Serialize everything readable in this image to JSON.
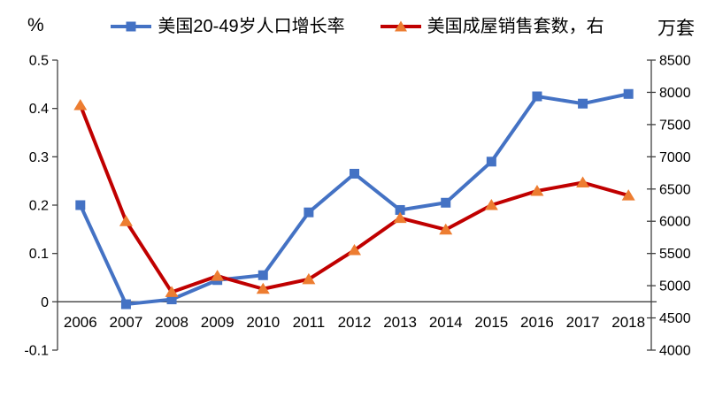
{
  "chart_data": {
    "type": "line",
    "title": "",
    "categories": [
      "2006",
      "2007",
      "2008",
      "2009",
      "2010",
      "2011",
      "2012",
      "2013",
      "2014",
      "2015",
      "2016",
      "2017",
      "2018"
    ],
    "series": [
      {
        "name": "美国20-49岁人口增长率",
        "axis": "left",
        "color": "#4472C4",
        "marker": "square",
        "marker_color": "#4472C4",
        "values": [
          0.2,
          -0.005,
          0.005,
          0.045,
          0.055,
          0.185,
          0.265,
          0.19,
          0.205,
          0.29,
          0.425,
          0.41,
          0.43
        ]
      },
      {
        "name": "美国成屋销售套数，右",
        "axis": "right",
        "color": "#C00000",
        "marker": "triangle",
        "marker_color": "#ED7D31",
        "values": [
          7800,
          6000,
          4900,
          5150,
          4950,
          5100,
          5550,
          6050,
          5870,
          6250,
          6470,
          6600,
          6400
        ]
      }
    ],
    "left_axis": {
      "unit": "%",
      "min": -0.1,
      "max": 0.5,
      "step": 0.1,
      "ticks": [
        "0.5",
        "0.4",
        "0.3",
        "0.2",
        "0.1",
        "0",
        "-0.1"
      ]
    },
    "right_axis": {
      "unit": "万套",
      "min": 4000,
      "max": 8500,
      "step": 500,
      "ticks": [
        "8500",
        "8000",
        "7500",
        "7000",
        "6500",
        "6000",
        "5500",
        "5000",
        "4500",
        "4000"
      ]
    },
    "grid": false,
    "legend_position": "top",
    "axis_color": "#404040",
    "text_color": "#000000"
  }
}
